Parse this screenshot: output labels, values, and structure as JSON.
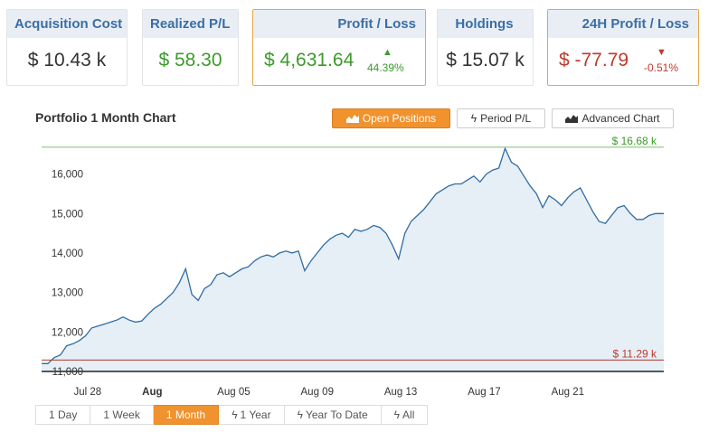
{
  "stats": [
    {
      "label": "Acquisition Cost",
      "value": "$ 10.43 k"
    },
    {
      "label": "Realized P/L",
      "value": "$ 58.30"
    },
    {
      "label": "Profit / Loss",
      "value": "$ 4,631.64",
      "change": "44.39%"
    },
    {
      "label": "Holdings",
      "value": "$ 15.07 k"
    },
    {
      "label": "24H Profit / Loss",
      "value": "$ -77.79",
      "change": "-0.51%"
    }
  ],
  "icons": {
    "up": "triangle-up-icon",
    "down": "triangle-down-icon",
    "bolt": "bolt-icon",
    "area": "area-chart-icon"
  },
  "colors": {
    "accent": "#f0922e",
    "positive": "#3c9a2b",
    "negative": "#c0392b",
    "header_text": "#3a6ea5",
    "line": "#2f6da3",
    "fill": "#e6eef6"
  },
  "chart": {
    "title": "Portfolio 1 Month Chart",
    "buttons": [
      "Open Positions",
      "Period P/L",
      "Advanced Chart"
    ],
    "active_button": "Open Positions",
    "max_label": "$ 16.68 k",
    "min_label": "$ 11.29 k",
    "ranges": [
      "1 Day",
      "1 Week",
      "1 Month",
      "1 Year",
      "Year To Date",
      "All"
    ],
    "active_range": "1 Month"
  },
  "chart_data": {
    "type": "area",
    "title": "Portfolio 1 Month Chart",
    "xlabel": "",
    "ylabel": "",
    "ylim": [
      11000,
      16700
    ],
    "y_ticks": [
      11000,
      12000,
      13000,
      14000,
      15000,
      16000
    ],
    "y_tick_labels": [
      "11,000",
      "12,000",
      "13,000",
      "14,000",
      "15,000",
      "16,000"
    ],
    "x_tick_labels": [
      "Jul 28",
      "Aug",
      "Aug 05",
      "Aug 09",
      "Aug 13",
      "Aug 17",
      "Aug 21"
    ],
    "x_tick_positions": [
      2.2,
      5.3,
      9.2,
      13.2,
      17.2,
      21.2,
      25.2
    ],
    "x_range": [
      0,
      29.8
    ],
    "max_line": 16680,
    "min_line": 11290,
    "grid": false,
    "legend": "none",
    "x": [
      0,
      0.3,
      0.6,
      0.9,
      1.2,
      1.5,
      1.8,
      2.1,
      2.4,
      2.7,
      3.0,
      3.3,
      3.6,
      3.9,
      4.2,
      4.5,
      4.8,
      5.1,
      5.4,
      5.7,
      6.0,
      6.3,
      6.6,
      6.9,
      7.2,
      7.5,
      7.8,
      8.1,
      8.4,
      8.7,
      9.0,
      9.3,
      9.6,
      9.9,
      10.2,
      10.5,
      10.8,
      11.1,
      11.4,
      11.7,
      12.0,
      12.3,
      12.6,
      12.9,
      13.2,
      13.5,
      13.8,
      14.1,
      14.4,
      14.7,
      15.0,
      15.3,
      15.6,
      15.9,
      16.2,
      16.5,
      16.8,
      17.1,
      17.4,
      17.7,
      18.0,
      18.3,
      18.6,
      18.9,
      19.2,
      19.5,
      19.8,
      20.1,
      20.4,
      20.7,
      21.0,
      21.3,
      21.6,
      21.9,
      22.2,
      22.5,
      22.8,
      23.1,
      23.4,
      23.7,
      24.0,
      24.3,
      24.6,
      24.9,
      25.2,
      25.5,
      25.8,
      26.1,
      26.4,
      26.7,
      27.0,
      27.3,
      27.6,
      27.9,
      28.2,
      28.5,
      28.8,
      29.1,
      29.4,
      29.8
    ],
    "values": [
      11200,
      11200,
      11350,
      11420,
      11650,
      11700,
      11780,
      11900,
      12100,
      12150,
      12200,
      12250,
      12300,
      12380,
      12300,
      12250,
      12280,
      12450,
      12600,
      12700,
      12850,
      13000,
      13250,
      13600,
      12950,
      12800,
      13100,
      13200,
      13450,
      13500,
      13400,
      13500,
      13600,
      13650,
      13800,
      13900,
      13950,
      13900,
      14000,
      14050,
      14000,
      14050,
      13550,
      13800,
      14000,
      14200,
      14350,
      14450,
      14500,
      14400,
      14600,
      14550,
      14600,
      14700,
      14650,
      14500,
      14200,
      13850,
      14500,
      14800,
      14950,
      15100,
      15300,
      15500,
      15600,
      15700,
      15750,
      15750,
      15850,
      15950,
      15800,
      16000,
      16100,
      16150,
      16650,
      16300,
      16200,
      15950,
      15700,
      15500,
      15150,
      15450,
      15350,
      15200,
      15400,
      15550,
      15650,
      15350,
      15050,
      14800,
      14750,
      14950,
      15150,
      15200,
      15000,
      14850,
      14850,
      14950,
      15000,
      15000
    ]
  }
}
